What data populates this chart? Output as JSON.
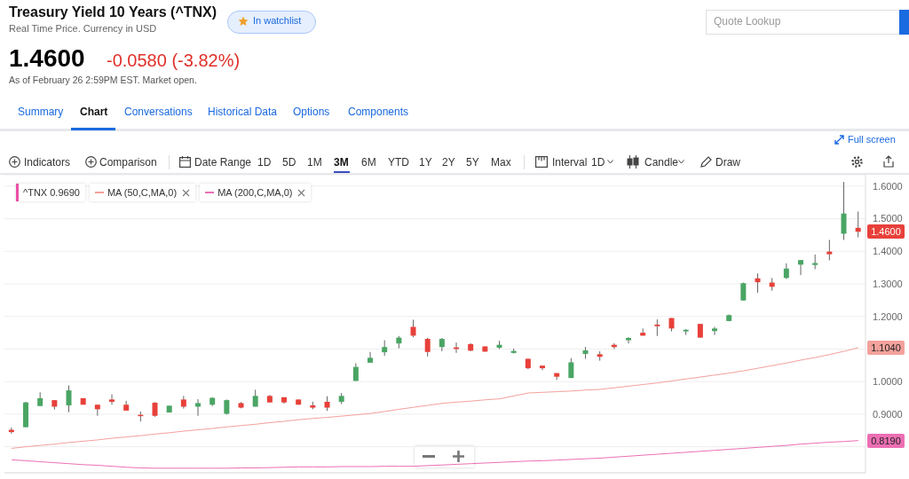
{
  "chart_data": {
    "type": "candlestick",
    "title": "Treasury Yield 10 Years (^TNX)",
    "subtitle": "Real Time Price. Currency in USD",
    "categories": [
      null,
      null,
      null,
      null,
      null,
      null,
      null,
      null,
      null,
      null,
      null,
      null,
      null,
      null,
      null,
      null,
      null,
      null,
      null,
      null,
      null,
      null,
      null,
      null,
      null,
      null,
      null,
      null,
      null,
      null,
      null,
      null,
      null,
      null,
      null,
      null,
      null,
      null,
      null,
      null,
      null,
      null,
      null,
      null,
      null,
      null,
      null,
      null,
      null,
      null,
      null,
      null,
      null,
      null,
      null,
      null,
      null,
      null,
      null,
      null
    ],
    "ohlc": [
      [
        0.852,
        0.859,
        0.84,
        0.845
      ],
      [
        0.86,
        0.938,
        0.86,
        0.936
      ],
      [
        0.925,
        0.967,
        0.925,
        0.949
      ],
      [
        0.943,
        0.943,
        0.914,
        0.923
      ],
      [
        0.927,
        0.988,
        0.906,
        0.973
      ],
      [
        0.949,
        0.949,
        0.929,
        0.929
      ],
      [
        0.929,
        0.929,
        0.895,
        0.915
      ],
      [
        0.945,
        0.961,
        0.929,
        0.938
      ],
      [
        0.929,
        0.941,
        0.911,
        0.911
      ],
      [
        0.898,
        0.908,
        0.877,
        0.896
      ],
      [
        0.935,
        0.937,
        0.892,
        0.895
      ],
      [
        0.905,
        0.926,
        0.905,
        0.926
      ],
      [
        0.945,
        0.956,
        0.917,
        0.923
      ],
      [
        0.923,
        0.946,
        0.895,
        0.934
      ],
      [
        0.929,
        0.952,
        0.925,
        0.95
      ],
      [
        0.901,
        0.945,
        0.899,
        0.943
      ],
      [
        0.934,
        0.937,
        0.918,
        0.92
      ],
      [
        0.923,
        0.975,
        0.923,
        0.956
      ],
      [
        0.956,
        0.959,
        0.936,
        0.936
      ],
      [
        0.952,
        0.952,
        0.932,
        0.936
      ],
      [
        0.945,
        0.945,
        0.929,
        0.929
      ],
      [
        0.927,
        0.938,
        0.915,
        0.92
      ],
      [
        0.938,
        0.955,
        0.91,
        0.92
      ],
      [
        0.938,
        0.965,
        0.931,
        0.956
      ],
      [
        1.002,
        1.056,
        1.002,
        1.045
      ],
      [
        1.058,
        1.091,
        1.058,
        1.073
      ],
      [
        1.09,
        1.127,
        1.079,
        1.106
      ],
      [
        1.117,
        1.14,
        1.102,
        1.135
      ],
      [
        1.168,
        1.19,
        1.136,
        1.141
      ],
      [
        1.131,
        1.134,
        1.077,
        1.091
      ],
      [
        1.106,
        1.134,
        1.093,
        1.131
      ],
      [
        1.105,
        1.12,
        1.088,
        1.1
      ],
      [
        1.115,
        1.118,
        1.093,
        1.095
      ],
      [
        1.108,
        1.108,
        1.092,
        1.092
      ],
      [
        1.104,
        1.125,
        1.1,
        1.113
      ],
      [
        1.088,
        1.101,
        1.086,
        1.094
      ],
      [
        1.07,
        1.07,
        1.038,
        1.041
      ],
      [
        1.049,
        1.049,
        1.035,
        1.041
      ],
      [
        1.026,
        1.026,
        1.005,
        1.015
      ],
      [
        1.011,
        1.072,
        1.011,
        1.059
      ],
      [
        1.085,
        1.106,
        1.07,
        1.096
      ],
      [
        1.084,
        1.093,
        1.064,
        1.076
      ],
      [
        1.113,
        1.118,
        1.1,
        1.106
      ],
      [
        1.127,
        1.136,
        1.117,
        1.134
      ],
      [
        1.15,
        1.163,
        1.141,
        1.141
      ],
      [
        1.175,
        1.191,
        1.14,
        1.17
      ],
      [
        1.195,
        1.195,
        1.154,
        1.163
      ],
      [
        1.154,
        1.161,
        1.143,
        1.159
      ],
      [
        1.177,
        1.177,
        1.135,
        1.135
      ],
      [
        1.155,
        1.168,
        1.143,
        1.163
      ],
      [
        1.186,
        1.206,
        1.185,
        1.204
      ],
      [
        1.249,
        1.304,
        1.249,
        1.302
      ],
      [
        1.317,
        1.332,
        1.273,
        1.305
      ],
      [
        1.304,
        1.318,
        1.279,
        1.291
      ],
      [
        1.318,
        1.363,
        1.315,
        1.347
      ],
      [
        1.359,
        1.373,
        1.327,
        1.373
      ],
      [
        1.358,
        1.39,
        1.345,
        1.364
      ],
      [
        1.399,
        1.435,
        1.372,
        1.391
      ],
      [
        1.454,
        1.613,
        1.435,
        1.516
      ],
      [
        1.472,
        1.522,
        1.443,
        1.46
      ]
    ],
    "colors": [
      "#e8403a",
      "#4aa564",
      "#4aa564",
      "#e8403a",
      "#4aa564",
      "#e8403a",
      "#e8403a",
      "#e8403a",
      "#e8403a",
      "#e8403a",
      "#e8403a",
      "#4aa564",
      "#e8403a",
      "#4aa564",
      "#4aa564",
      "#4aa564",
      "#e8403a",
      "#4aa564",
      "#e8403a",
      "#e8403a",
      "#e8403a",
      "#e8403a",
      "#e8403a",
      "#4aa564",
      "#4aa564",
      "#4aa564",
      "#4aa564",
      "#4aa564",
      "#e8403a",
      "#e8403a",
      "#4aa564",
      "#e8403a",
      "#e8403a",
      "#e8403a",
      "#4aa564",
      "#4aa564",
      "#e8403a",
      "#e8403a",
      "#e8403a",
      "#4aa564",
      "#4aa564",
      "#e8403a",
      "#e8403a",
      "#4aa564",
      "#e8403a",
      "#e8403a",
      "#e8403a",
      "#4aa564",
      "#e8403a",
      "#4aa564",
      "#4aa564",
      "#4aa564",
      "#e8403a",
      "#e8403a",
      "#4aa564",
      "#4aa564",
      "#4aa564",
      "#e8403a",
      "#4aa564",
      "#e8403a"
    ],
    "series": [
      {
        "name": "MA (50,C,MA,0)",
        "type": "line",
        "color": "#f3a19b",
        "values": [
          0.795,
          0.8,
          0.804,
          0.808,
          0.813,
          0.817,
          0.821,
          0.826,
          0.83,
          0.834,
          0.839,
          0.843,
          0.848,
          0.852,
          0.856,
          0.861,
          0.865,
          0.869,
          0.874,
          0.878,
          0.883,
          0.887,
          0.89,
          0.894,
          0.898,
          0.902,
          0.908,
          0.915,
          0.921,
          0.927,
          0.933,
          0.937,
          0.94,
          0.944,
          0.947,
          0.956,
          0.965,
          0.967,
          0.969,
          0.971,
          0.974,
          0.976,
          0.981,
          0.986,
          0.991,
          0.996,
          1.002,
          1.008,
          1.014,
          1.02,
          1.026,
          1.033,
          1.041,
          1.049,
          1.057,
          1.066,
          1.074,
          1.083,
          1.093,
          1.104
        ]
      },
      {
        "name": "MA (200,C,MA,0)",
        "type": "line",
        "color": "#ec6fb3",
        "values": [
          0.76,
          0.757,
          0.754,
          0.751,
          0.748,
          0.745,
          0.743,
          0.74,
          0.737,
          0.735,
          0.734,
          0.734,
          0.734,
          0.734,
          0.734,
          0.734,
          0.735,
          0.735,
          0.736,
          0.737,
          0.738,
          0.738,
          0.738,
          0.739,
          0.739,
          0.739,
          0.74,
          0.74,
          0.74,
          0.742,
          0.744,
          0.746,
          0.748,
          0.75,
          0.752,
          0.754,
          0.756,
          0.757,
          0.759,
          0.761,
          0.763,
          0.765,
          0.768,
          0.771,
          0.774,
          0.777,
          0.78,
          0.783,
          0.786,
          0.789,
          0.792,
          0.795,
          0.798,
          0.801,
          0.804,
          0.808,
          0.811,
          0.814,
          0.816,
          0.819
        ]
      }
    ],
    "ylim": [
      0.72,
      1.635
    ],
    "yticks": [
      {
        "value": 0.8,
        "label": null
      },
      {
        "value": 0.9,
        "label": "0.9000"
      },
      {
        "value": 1.0,
        "label": "1.0000"
      },
      {
        "value": 1.1,
        "label": null
      },
      {
        "value": 1.2,
        "label": "1.2000"
      },
      {
        "value": 1.3,
        "label": "1.3000"
      },
      {
        "value": 1.4,
        "label": "1.4000"
      },
      {
        "value": 1.5,
        "label": "1.5000"
      },
      {
        "value": 1.6,
        "label": "1.6000"
      }
    ],
    "grid": "y",
    "legend": "top left",
    "tick_labels": "y",
    "annotations": [
      "1.4600",
      "-0.0580 (-3.82%)",
      "As of February 26 2:59PM EST. Market open.",
      "In watchlist",
      "Quote Lookup",
      "Summary",
      "Chart",
      "Conversations",
      "Historical Data",
      "Options",
      "Components",
      "Full screen",
      "Indicators",
      "Comparison",
      "Date Range",
      "1D",
      "5D",
      "1M",
      "3M",
      "6M",
      "YTD",
      "1Y",
      "2Y",
      "5Y",
      "Max",
      "Interval",
      "1D",
      "Candle",
      "Draw",
      "^TNX 0.9690",
      {
        "text": "1.4600",
        "y": 1.46
      },
      {
        "text": "1.1040",
        "y": 1.104
      },
      {
        "text": "0.8190",
        "y": 0.819
      }
    ]
  }
}
